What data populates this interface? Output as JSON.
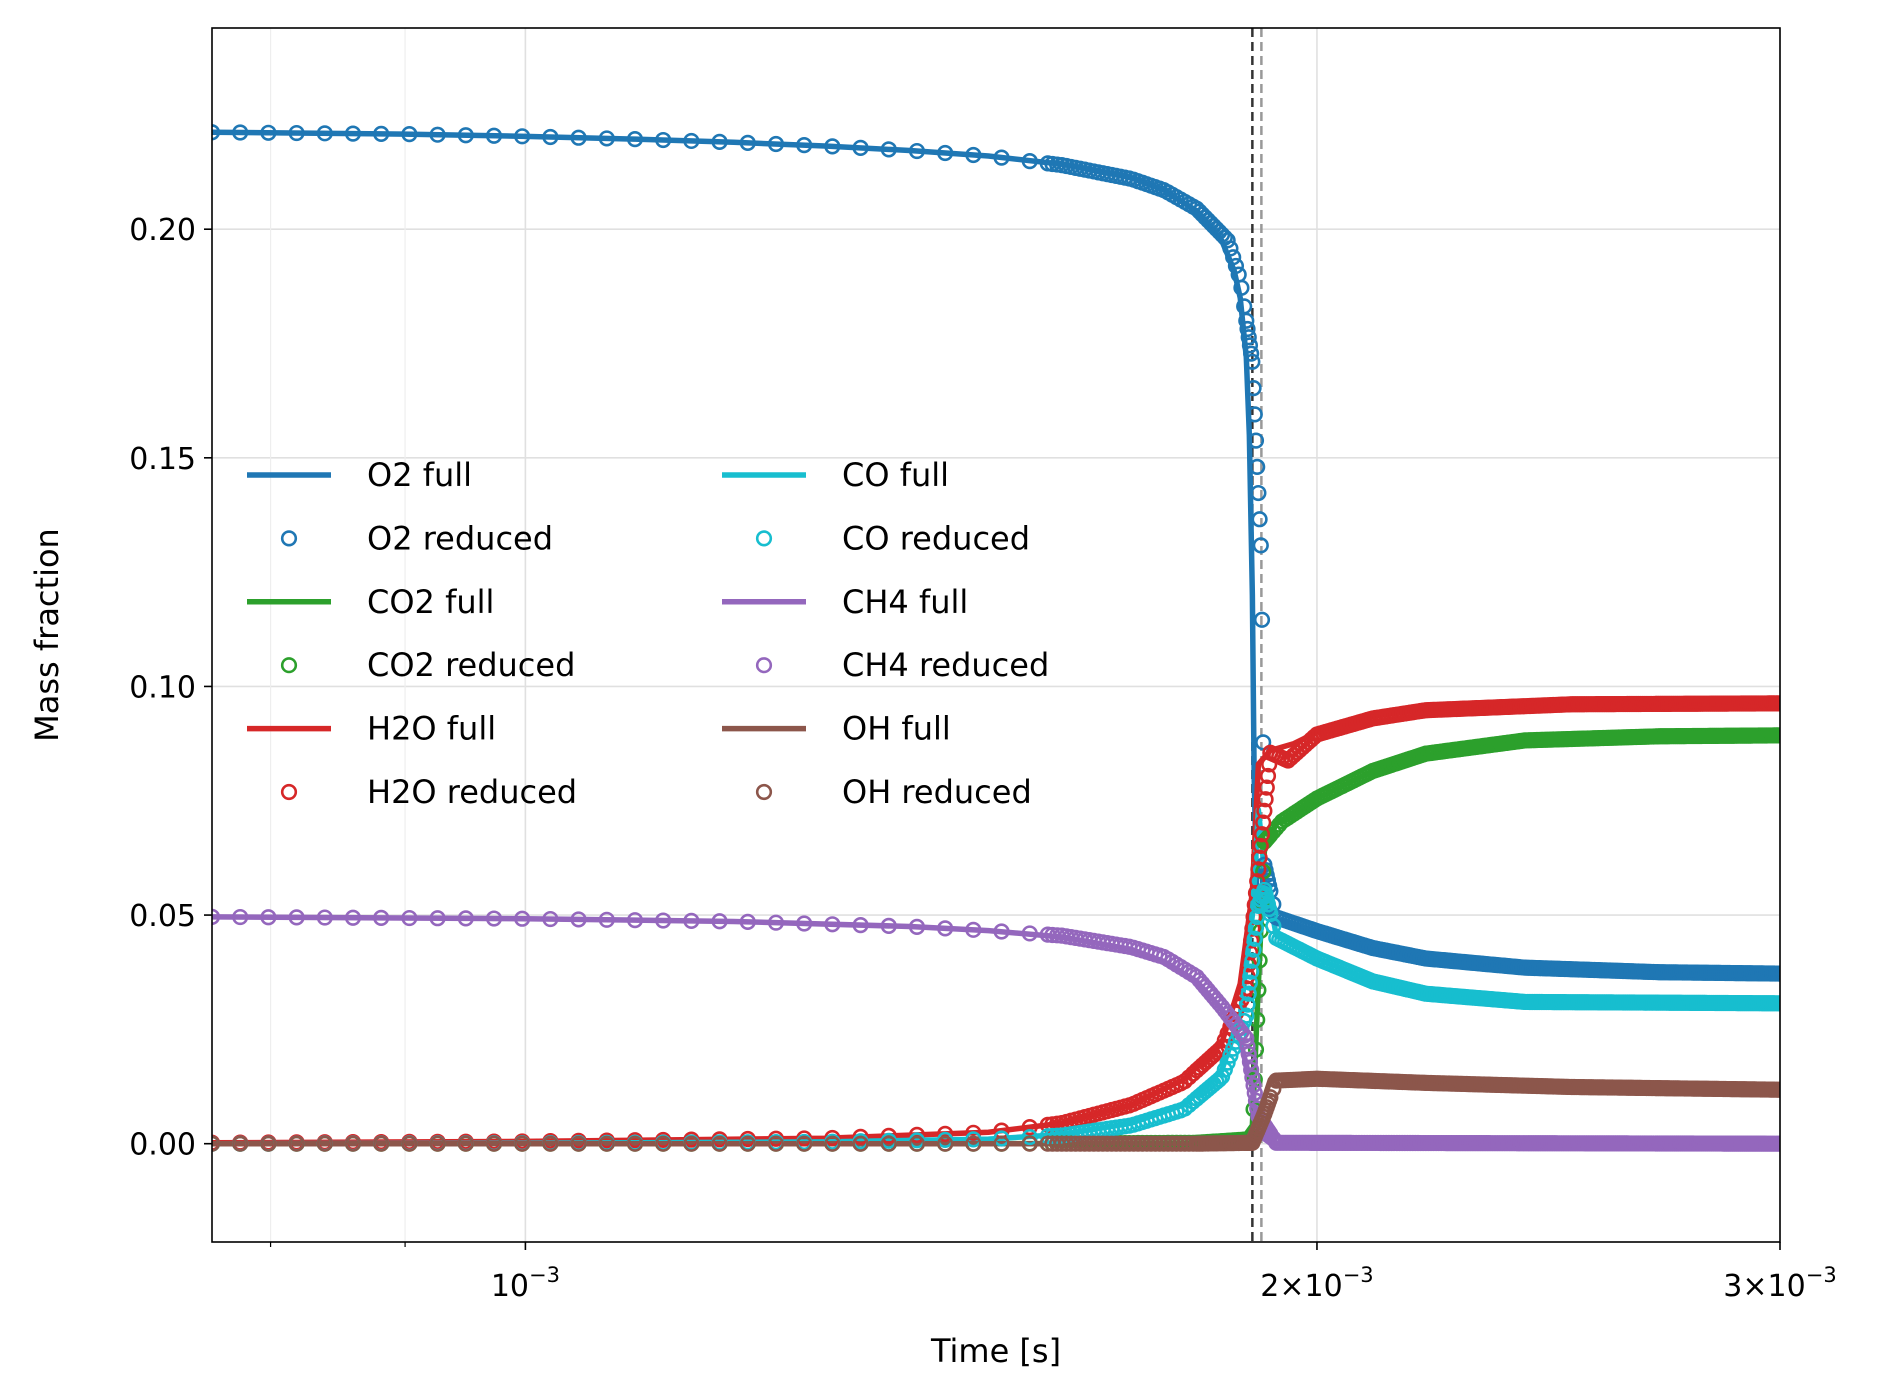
{
  "chart_data": {
    "type": "line",
    "xlabel": "Time [s]",
    "ylabel": "Mass fraction",
    "xscale": "log",
    "xlim": [
      0.00076,
      0.003
    ],
    "ylim": [
      -0.0215,
      0.244
    ],
    "grid": true,
    "legend_position": "center-left",
    "legend_columns": 2,
    "x_ticks": [
      {
        "value": 0.001,
        "base": "10",
        "exp": "−3"
      },
      {
        "value": 0.002,
        "mant": "2",
        "base": "10",
        "exp": "−3"
      },
      {
        "value": 0.003,
        "mant": "3",
        "base": "10",
        "exp": "−3"
      }
    ],
    "x_minor_ticks": [
      0.0008,
      0.0009
    ],
    "y_ticks": [
      {
        "value": 0.0,
        "label": "0.00"
      },
      {
        "value": 0.05,
        "label": "0.05"
      },
      {
        "value": 0.1,
        "label": "0.10"
      },
      {
        "value": 0.15,
        "label": "0.15"
      },
      {
        "value": 0.2,
        "label": "0.20"
      }
    ],
    "vlines": [
      {
        "x": 0.00189,
        "color": "#333333"
      },
      {
        "x": 0.001905,
        "color": "#999999"
      }
    ],
    "series": [
      {
        "name": "O2",
        "full_label": "O2 full",
        "reduced_label": "O2 reduced",
        "color": "#1f77b4",
        "full": [
          [
            0.00076,
            0.2212
          ],
          [
            0.0009,
            0.2208
          ],
          [
            0.001,
            0.2203
          ],
          [
            0.0011,
            0.2197
          ],
          [
            0.0012,
            0.219
          ],
          [
            0.0013,
            0.2182
          ],
          [
            0.0014,
            0.2172
          ],
          [
            0.0015,
            0.216
          ],
          [
            0.0016,
            0.2142
          ],
          [
            0.0017,
            0.2112
          ],
          [
            0.00175,
            0.2085
          ],
          [
            0.0018,
            0.204
          ],
          [
            0.00184,
            0.1975
          ],
          [
            0.00186,
            0.191
          ],
          [
            0.00187,
            0.185
          ],
          [
            0.00188,
            0.172
          ],
          [
            0.001885,
            0.155
          ],
          [
            0.00189,
            0.12
          ],
          [
            0.001893,
            0.08
          ],
          [
            0.001897,
            0.056
          ],
          [
            0.0019,
            0.052
          ],
          [
            0.00192,
            0.0497
          ],
          [
            0.002,
            0.0462
          ],
          [
            0.0021,
            0.0425
          ],
          [
            0.0022,
            0.0405
          ],
          [
            0.0024,
            0.0385
          ],
          [
            0.0027,
            0.0376
          ],
          [
            0.003,
            0.0372
          ]
        ],
        "reduced": [
          [
            0.00076,
            0.2212
          ],
          [
            0.0009,
            0.2208
          ],
          [
            0.001,
            0.2203
          ],
          [
            0.0011,
            0.2197
          ],
          [
            0.0012,
            0.219
          ],
          [
            0.0013,
            0.2182
          ],
          [
            0.0014,
            0.2172
          ],
          [
            0.0015,
            0.216
          ],
          [
            0.0016,
            0.214
          ],
          [
            0.0017,
            0.211
          ],
          [
            0.00175,
            0.2085
          ],
          [
            0.0018,
            0.2045
          ],
          [
            0.00185,
            0.1975
          ],
          [
            0.00187,
            0.189
          ],
          [
            0.00189,
            0.171
          ],
          [
            0.001905,
            0.128
          ],
          [
            0.00191,
            0.061
          ],
          [
            0.00193,
            0.0495
          ],
          [
            0.002,
            0.0465
          ],
          [
            0.0021,
            0.0428
          ],
          [
            0.0022,
            0.0405
          ],
          [
            0.0024,
            0.0385
          ],
          [
            0.0027,
            0.0375
          ],
          [
            0.003,
            0.0372
          ]
        ]
      },
      {
        "name": "CO2",
        "full_label": "CO2 full",
        "reduced_label": "CO2 reduced",
        "color": "#2ca02c",
        "full": [
          [
            0.00076,
            0.0
          ],
          [
            0.0015,
            0.0
          ],
          [
            0.0018,
            0.0001
          ],
          [
            0.00187,
            0.0003
          ],
          [
            0.00189,
            0.004
          ],
          [
            0.0019,
            0.035
          ],
          [
            0.00191,
            0.064
          ],
          [
            0.00193,
            0.07
          ],
          [
            0.002,
            0.0755
          ],
          [
            0.0021,
            0.0815
          ],
          [
            0.0022,
            0.085
          ],
          [
            0.0024,
            0.088
          ],
          [
            0.0027,
            0.0891
          ],
          [
            0.003,
            0.0893
          ]
        ],
        "reduced": [
          [
            0.00076,
            0.0
          ],
          [
            0.0015,
            0.0
          ],
          [
            0.0018,
            0.0002
          ],
          [
            0.00189,
            0.001
          ],
          [
            0.00191,
            0.066
          ],
          [
            0.00194,
            0.0705
          ],
          [
            0.002,
            0.0755
          ],
          [
            0.0021,
            0.0815
          ],
          [
            0.0022,
            0.0853
          ],
          [
            0.0024,
            0.0882
          ],
          [
            0.0027,
            0.0891
          ],
          [
            0.003,
            0.0893
          ]
        ]
      },
      {
        "name": "H2O",
        "full_label": "H2O full",
        "reduced_label": "H2O reduced",
        "color": "#d62728",
        "full": [
          [
            0.00076,
            0.0002
          ],
          [
            0.001,
            0.0005
          ],
          [
            0.0013,
            0.0012
          ],
          [
            0.0015,
            0.0025
          ],
          [
            0.0016,
            0.0045
          ],
          [
            0.0017,
            0.0085
          ],
          [
            0.00178,
            0.014
          ],
          [
            0.00184,
            0.022
          ],
          [
            0.00187,
            0.035
          ],
          [
            0.00189,
            0.055
          ],
          [
            0.0019,
            0.083
          ],
          [
            0.00192,
            0.086
          ],
          [
            0.00196,
            0.0875
          ],
          [
            0.002,
            0.09
          ],
          [
            0.0021,
            0.0935
          ],
          [
            0.0022,
            0.095
          ],
          [
            0.0025,
            0.0962
          ],
          [
            0.003,
            0.0963
          ]
        ],
        "reduced": [
          [
            0.00076,
            0.0002
          ],
          [
            0.001,
            0.0005
          ],
          [
            0.0013,
            0.0012
          ],
          [
            0.0015,
            0.0025
          ],
          [
            0.0016,
            0.0045
          ],
          [
            0.0017,
            0.0085
          ],
          [
            0.00178,
            0.0135
          ],
          [
            0.00184,
            0.021
          ],
          [
            0.00188,
            0.034
          ],
          [
            0.0019,
            0.06
          ],
          [
            0.00192,
            0.0855
          ],
          [
            0.00195,
            0.0838
          ],
          [
            0.002,
            0.0895
          ],
          [
            0.0021,
            0.093
          ],
          [
            0.0022,
            0.0948
          ],
          [
            0.0025,
            0.0961
          ],
          [
            0.003,
            0.0963
          ]
        ]
      },
      {
        "name": "CO",
        "full_label": "CO full",
        "reduced_label": "CO reduced",
        "color": "#17becf",
        "full": [
          [
            0.00076,
            0.0
          ],
          [
            0.001,
            0.0001
          ],
          [
            0.0013,
            0.0004
          ],
          [
            0.0015,
            0.001
          ],
          [
            0.0016,
            0.002
          ],
          [
            0.0017,
            0.0045
          ],
          [
            0.00178,
            0.0085
          ],
          [
            0.00184,
            0.016
          ],
          [
            0.00187,
            0.028
          ],
          [
            0.00189,
            0.05
          ],
          [
            0.0019,
            0.073
          ],
          [
            0.00191,
            0.06
          ],
          [
            0.00193,
            0.0455
          ],
          [
            0.002,
            0.0405
          ],
          [
            0.0021,
            0.0355
          ],
          [
            0.0022,
            0.0328
          ],
          [
            0.0024,
            0.031
          ],
          [
            0.003,
            0.0307
          ]
        ],
        "reduced": [
          [
            0.00076,
            0.0
          ],
          [
            0.001,
            0.0001
          ],
          [
            0.0013,
            0.0004
          ],
          [
            0.0015,
            0.001
          ],
          [
            0.0016,
            0.0018
          ],
          [
            0.0017,
            0.004
          ],
          [
            0.00178,
            0.0075
          ],
          [
            0.00184,
            0.0145
          ],
          [
            0.00188,
            0.028
          ],
          [
            0.0019,
            0.052
          ],
          [
            0.00191,
            0.0555
          ],
          [
            0.00193,
            0.045
          ],
          [
            0.002,
            0.0405
          ],
          [
            0.0021,
            0.0355
          ],
          [
            0.0022,
            0.0328
          ],
          [
            0.0024,
            0.031
          ],
          [
            0.003,
            0.0307
          ]
        ]
      },
      {
        "name": "CH4",
        "full_label": "CH4 full",
        "reduced_label": "CH4 reduced",
        "color": "#9467bd",
        "full": [
          [
            0.00076,
            0.0496
          ],
          [
            0.001,
            0.0492
          ],
          [
            0.0012,
            0.0486
          ],
          [
            0.0014,
            0.0475
          ],
          [
            0.0015,
            0.0466
          ],
          [
            0.0016,
            0.0452
          ],
          [
            0.0017,
            0.0425
          ],
          [
            0.00175,
            0.0398
          ],
          [
            0.0018,
            0.0355
          ],
          [
            0.00184,
            0.0295
          ],
          [
            0.00187,
            0.0225
          ],
          [
            0.00189,
            0.012
          ],
          [
            0.0019,
            0.002
          ],
          [
            0.00192,
            0.0001
          ],
          [
            0.003,
            0.0
          ]
        ],
        "reduced": [
          [
            0.00076,
            0.0496
          ],
          [
            0.001,
            0.0492
          ],
          [
            0.0012,
            0.0486
          ],
          [
            0.0014,
            0.0475
          ],
          [
            0.0015,
            0.0466
          ],
          [
            0.0016,
            0.0455
          ],
          [
            0.0017,
            0.043
          ],
          [
            0.00175,
            0.0408
          ],
          [
            0.0018,
            0.0365
          ],
          [
            0.00184,
            0.03
          ],
          [
            0.00188,
            0.023
          ],
          [
            0.0019,
            0.006
          ],
          [
            0.00193,
            0.0002
          ],
          [
            0.003,
            0.0
          ]
        ]
      },
      {
        "name": "OH",
        "full_label": "OH full",
        "reduced_label": "OH reduced",
        "color": "#8c564b",
        "full": [
          [
            0.00076,
            0.0
          ],
          [
            0.0018,
            0.0
          ],
          [
            0.00188,
            0.0001
          ],
          [
            0.0019,
            0.002
          ],
          [
            0.001905,
            0.008
          ],
          [
            0.00192,
            0.014
          ],
          [
            0.00196,
            0.0145
          ],
          [
            0.002,
            0.0142
          ],
          [
            0.0022,
            0.0133
          ],
          [
            0.0025,
            0.0124
          ],
          [
            0.003,
            0.0119
          ]
        ],
        "reduced": [
          [
            0.00076,
            0.0
          ],
          [
            0.0018,
            0.0
          ],
          [
            0.00189,
            0.0002
          ],
          [
            0.00191,
            0.0065
          ],
          [
            0.00193,
            0.0138
          ],
          [
            0.002,
            0.0142
          ],
          [
            0.0022,
            0.0133
          ],
          [
            0.0025,
            0.0124
          ],
          [
            0.003,
            0.0118
          ]
        ]
      }
    ]
  }
}
